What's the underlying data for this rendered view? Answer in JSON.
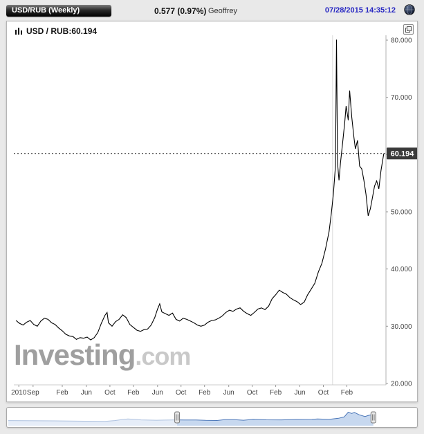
{
  "header": {
    "symbol_label": "USD/RUB (Weekly)",
    "change": "0.577 (0.97%)",
    "user": "Geoffrey",
    "timestamp": "07/28/2015 14:35:12"
  },
  "chart": {
    "legend": "USD / RUB:60.194",
    "watermark_bold": "Investing",
    "watermark_light": ".com",
    "last_price_label": "60.194"
  },
  "colors": {
    "accent_blue": "#2626c2",
    "series": "#000000",
    "navigator_fill": "#c7d8ef",
    "navigator_line": "#4a76b8",
    "last_price_bg": "#3a3a3a",
    "axis_text": "#444444",
    "gridline": "#dcdcdc"
  },
  "chart_data": {
    "type": "line",
    "title": "USD/RUB Weekly",
    "xlim": [
      2010.42,
      2015.65
    ],
    "ylim": [
      19.75,
      80.85
    ],
    "last_price": 60.194,
    "year_gridline": 2014.9,
    "x_ticks": {
      "times": [
        2010.49,
        2010.69,
        2011.1,
        2011.44,
        2011.77,
        2012.1,
        2012.44,
        2012.77,
        2013.1,
        2013.44,
        2013.77,
        2014.1,
        2014.44,
        2014.77,
        2015.1
      ],
      "labels": [
        "2010",
        "Sep",
        "Feb",
        "Jun",
        "Oct",
        "Feb",
        "Jun",
        "Oct",
        "Feb",
        "Jun",
        "Oct",
        "Feb",
        "Jun",
        "Oct",
        "Feb"
      ]
    },
    "y_ticks": {
      "values": [
        80,
        70,
        60,
        50,
        40,
        30,
        20
      ],
      "labels": [
        "80.000",
        "70.000",
        "60.000",
        "50.000",
        "40.000",
        "30.000",
        "20.000"
      ]
    },
    "series": [
      {
        "name": "USD/RUB",
        "x": [
          2010.45,
          2010.5,
          2010.55,
          2010.6,
          2010.65,
          2010.7,
          2010.75,
          2010.8,
          2010.85,
          2010.9,
          2010.95,
          2011.0,
          2011.05,
          2011.1,
          2011.15,
          2011.2,
          2011.25,
          2011.3,
          2011.35,
          2011.4,
          2011.45,
          2011.5,
          2011.55,
          2011.6,
          2011.65,
          2011.7,
          2011.73,
          2011.75,
          2011.8,
          2011.85,
          2011.9,
          2011.95,
          2012.0,
          2012.05,
          2012.1,
          2012.15,
          2012.2,
          2012.25,
          2012.3,
          2012.35,
          2012.4,
          2012.44,
          2012.47,
          2012.5,
          2012.55,
          2012.6,
          2012.65,
          2012.7,
          2012.75,
          2012.8,
          2012.85,
          2012.9,
          2012.95,
          2013.0,
          2013.05,
          2013.1,
          2013.15,
          2013.2,
          2013.25,
          2013.3,
          2013.35,
          2013.4,
          2013.45,
          2013.5,
          2013.55,
          2013.6,
          2013.65,
          2013.7,
          2013.75,
          2013.8,
          2013.85,
          2013.9,
          2013.95,
          2014.0,
          2014.05,
          2014.1,
          2014.15,
          2014.2,
          2014.25,
          2014.3,
          2014.35,
          2014.4,
          2014.45,
          2014.5,
          2014.55,
          2014.6,
          2014.65,
          2014.7,
          2014.75,
          2014.8,
          2014.85,
          2014.88,
          2014.91,
          2014.94,
          2014.955,
          2014.97,
          2014.99,
          2015.01,
          2015.04,
          2015.07,
          2015.09,
          2015.12,
          2015.14,
          2015.17,
          2015.2,
          2015.22,
          2015.25,
          2015.28,
          2015.31,
          2015.34,
          2015.37,
          2015.4,
          2015.43,
          2015.46,
          2015.49,
          2015.52,
          2015.55,
          2015.58,
          2015.62
        ],
        "values": [
          31.0,
          30.5,
          30.2,
          30.7,
          31.0,
          30.3,
          30.0,
          30.9,
          31.4,
          31.2,
          30.6,
          30.3,
          29.7,
          29.2,
          28.6,
          28.3,
          28.2,
          27.7,
          28.0,
          27.9,
          28.1,
          27.6,
          28.0,
          28.9,
          30.5,
          31.9,
          32.4,
          30.6,
          30.0,
          30.8,
          31.2,
          32.0,
          31.5,
          30.3,
          29.8,
          29.3,
          29.1,
          29.4,
          29.5,
          30.2,
          31.5,
          33.0,
          33.9,
          32.5,
          32.2,
          31.9,
          32.3,
          31.2,
          30.9,
          31.4,
          31.2,
          30.9,
          30.6,
          30.2,
          30.0,
          30.2,
          30.7,
          31.0,
          31.1,
          31.4,
          31.8,
          32.4,
          32.8,
          32.6,
          33.0,
          33.2,
          32.6,
          32.2,
          31.9,
          32.4,
          33.0,
          33.2,
          32.9,
          33.5,
          34.8,
          35.5,
          36.3,
          35.9,
          35.6,
          35.0,
          34.6,
          34.3,
          33.8,
          34.2,
          35.5,
          36.5,
          37.5,
          39.5,
          41.0,
          43.5,
          46.5,
          49.5,
          53.0,
          58.0,
          80.1,
          58.5,
          55.5,
          58.5,
          62.0,
          65.5,
          68.5,
          66.0,
          71.2,
          66.5,
          63.0,
          61.0,
          62.5,
          58.0,
          57.5,
          55.5,
          53.0,
          49.3,
          50.5,
          52.5,
          54.5,
          55.4,
          54.0,
          57.2,
          60.194
        ]
      }
    ],
    "navigator": {
      "xlim": [
        2006.0,
        2016.7
      ],
      "ylim": [
        0,
        85
      ],
      "range": [
        2010.45,
        2015.62
      ],
      "x": [
        2006.0,
        2006.4,
        2006.8,
        2007.2,
        2007.6,
        2008.0,
        2008.3,
        2008.55,
        2008.8,
        2009.0,
        2009.15,
        2009.3,
        2009.5,
        2009.7,
        2009.9,
        2010.1,
        2010.45,
        2010.65,
        2010.95,
        2011.2,
        2011.5,
        2011.7,
        2011.95,
        2012.2,
        2012.45,
        2012.8,
        2013.2,
        2013.6,
        2014.0,
        2014.15,
        2014.45,
        2014.7,
        2014.85,
        2014.96,
        2015.05,
        2015.12,
        2015.25,
        2015.4,
        2015.5,
        2015.62
      ],
      "values": [
        27.2,
        26.9,
        26.4,
        25.7,
        24.8,
        24.2,
        23.6,
        23.4,
        27.5,
        33.0,
        36.2,
        34.0,
        31.2,
        30.0,
        29.2,
        29.8,
        31.0,
        30.3,
        30.6,
        28.3,
        27.6,
        32.4,
        32.0,
        29.1,
        33.8,
        31.4,
        31.0,
        33.2,
        33.5,
        36.3,
        33.8,
        39.5,
        46.5,
        72.0,
        65.5,
        71.0,
        58.0,
        49.3,
        55.4,
        60.2
      ]
    }
  }
}
